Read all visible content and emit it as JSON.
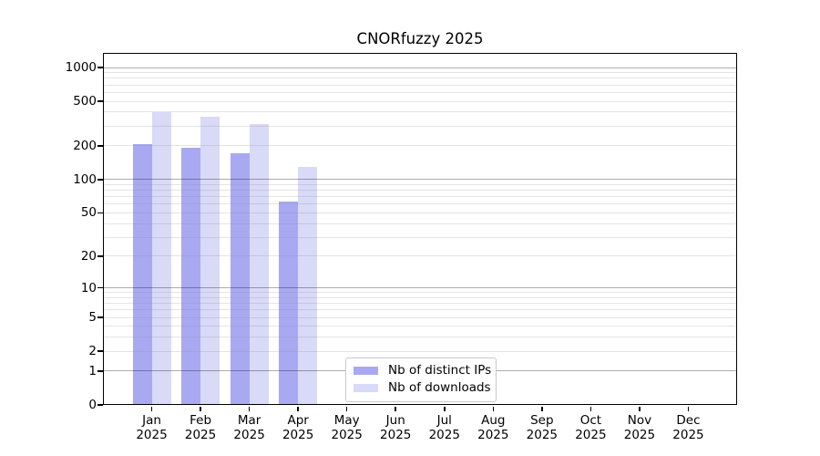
{
  "title": "CNORfuzzy 2025",
  "chart_data": {
    "type": "bar",
    "title": "CNORfuzzy 2025",
    "y_scale": "log1p",
    "ylim": [
      0,
      1000
    ],
    "y_ticks": [
      0,
      1,
      2,
      5,
      10,
      20,
      50,
      100,
      200,
      500,
      1000
    ],
    "grid": "horizontal major (1,10,100,1000) + log minor lines, drawn over bars",
    "x_categories": [
      "Jan",
      "Feb",
      "Mar",
      "Apr",
      "May",
      "Jun",
      "Jul",
      "Aug",
      "Sep",
      "Oct",
      "Nov",
      "Dec"
    ],
    "x_year_label": "2025",
    "legend_position": "bottom, left of center inside plot",
    "series": [
      {
        "name": "Nb of distinct IPs",
        "color": "#a9a9f2",
        "values": [
          208,
          191,
          172,
          63,
          null,
          null,
          null,
          null,
          null,
          null,
          null,
          null
        ]
      },
      {
        "name": "Nb of downloads",
        "color": "#d9d9f8",
        "values": [
          403,
          366,
          314,
          130,
          null,
          null,
          null,
          null,
          null,
          null,
          null,
          null
        ]
      }
    ]
  }
}
